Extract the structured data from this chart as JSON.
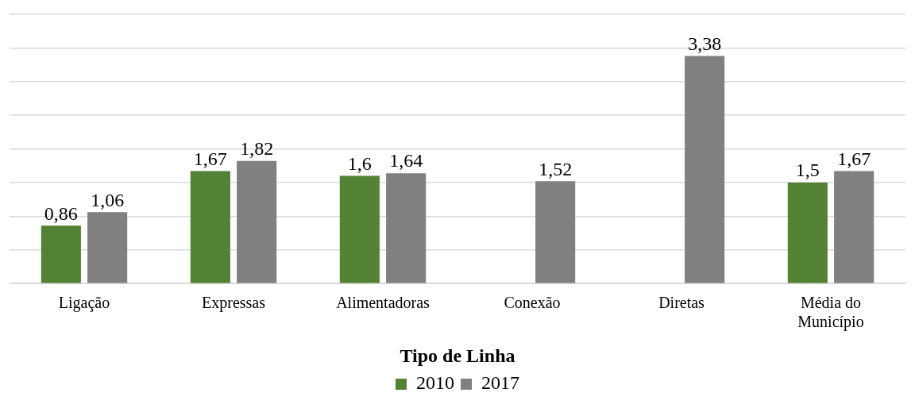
{
  "chart_data": {
    "type": "bar",
    "xlabel": "Tipo de Linha",
    "categories": [
      "Ligação",
      "Expressas",
      "Alimentadoras",
      "Conexão",
      "Diretas",
      "Média do Município"
    ],
    "series": [
      {
        "name": "2010",
        "color": "#548235",
        "values": [
          0.86,
          1.67,
          1.6,
          null,
          null,
          1.5
        ],
        "value_labels": [
          "0,86",
          "1,67",
          "1,6",
          null,
          null,
          "1,5"
        ]
      },
      {
        "name": "2017",
        "color": "#808080",
        "values": [
          1.06,
          1.82,
          1.64,
          1.52,
          3.38,
          1.67
        ],
        "value_labels": [
          "1,06",
          "1,82",
          "1,64",
          "1,52",
          "3,38",
          "1,67"
        ]
      }
    ],
    "ylim": [
      0,
      4
    ],
    "yticks": [
      {
        "value": 0,
        "label": null
      },
      {
        "value": 0.5,
        "label": null
      },
      {
        "value": 1,
        "label": null
      },
      {
        "value": 1.5,
        "label": null
      },
      {
        "value": 2,
        "label": null
      },
      {
        "value": 2.5,
        "label": null
      },
      {
        "value": 3,
        "label": null
      },
      {
        "value": 3.5,
        "label": null
      },
      {
        "value": 4,
        "label": null
      }
    ],
    "tick_labels": "x",
    "grid": "y",
    "legend": "bottom"
  }
}
